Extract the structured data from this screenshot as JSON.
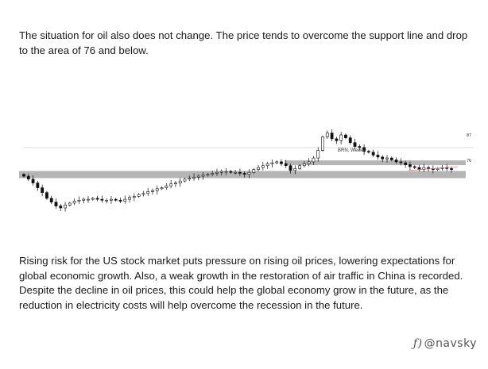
{
  "document": {
    "paragraph_1": "The situation for oil also does not change. The price tends to overcome the support line and drop to the area of 76 and below.",
    "paragraph_2": "Rising risk for the US stock market puts pressure on rising oil prices, lowering expectations for global economic growth. Also, a weak growth in the restoration of air traffic in China is recorded. Despite the decline in oil prices, this could help the global economy grow in the future, as the reduction in electricity costs will help overcome the recession in the future."
  },
  "chart_data": {
    "type": "candlestick",
    "instrument_label": "BRN, Weekly",
    "levels": [
      {
        "label": "87",
        "value": 87
      },
      {
        "label": "76",
        "value": 76
      }
    ],
    "colors": {
      "up": "#ffffff",
      "down": "#111111",
      "band": "#b5b5b5",
      "trend": "#e08080"
    },
    "closes": [
      73,
      70,
      66,
      61,
      56,
      50,
      46,
      42,
      40,
      43,
      45,
      47,
      48,
      49,
      49,
      50,
      49,
      48,
      48,
      49,
      48,
      47,
      49,
      51,
      52,
      54,
      55,
      57,
      58,
      60,
      61,
      63,
      65,
      66,
      68,
      70,
      71,
      72,
      73,
      74,
      75,
      76,
      77,
      78,
      78,
      77,
      77,
      76,
      75,
      77,
      80,
      82,
      84,
      86,
      87,
      88,
      86,
      84,
      79,
      81,
      84,
      86,
      88,
      92,
      100,
      114,
      118,
      112,
      110,
      116,
      113,
      108,
      104,
      103,
      99,
      98,
      95,
      93,
      91,
      92,
      90,
      88,
      87,
      85,
      83,
      82,
      80,
      82,
      81,
      80,
      81,
      82,
      81,
      80
    ]
  },
  "watermark": {
    "logo": "ƒ)",
    "handle": "@navsky"
  }
}
